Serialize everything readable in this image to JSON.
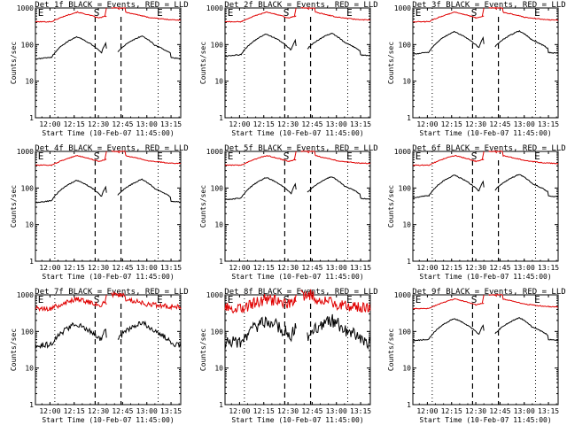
{
  "colors": {
    "events": "#000000",
    "lld": "#e00000",
    "background": "#ffffff",
    "axes": "#000000"
  },
  "chart_data": [
    {
      "type": "line",
      "title": "Det 1f BLACK = Events, RED = LLD",
      "xlabel": "Start Time (10-Feb-07 11:45:00)",
      "ylabel": "Counts/sec",
      "xlim": [
        "11:51",
        "13:21"
      ],
      "ylim": [
        1,
        1000
      ],
      "log_y": true,
      "x_ticks": [
        "12:00",
        "12:15",
        "12:30",
        "12:45",
        "13:00",
        "13:15"
      ],
      "y_ticks": [
        "1",
        "10",
        "100",
        "1000"
      ],
      "markers": [
        "E",
        "S",
        "E"
      ],
      "noise": "low"
    },
    {
      "type": "line",
      "title": "Det 2f BLACK = Events, RED = LLD",
      "xlabel": "Start Time (10-Feb-07 11:45:00)",
      "ylabel": "Counts/sec",
      "xlim": [
        "11:51",
        "13:21"
      ],
      "ylim": [
        1,
        1000
      ],
      "log_y": true,
      "x_ticks": [
        "12:00",
        "12:15",
        "12:30",
        "12:45",
        "13:00",
        "13:15"
      ],
      "y_ticks": [
        "1",
        "10",
        "100",
        "1000"
      ],
      "markers": [
        "E",
        "S",
        "E"
      ],
      "noise": "low"
    },
    {
      "type": "line",
      "title": "Det 3f BLACK = Events, RED = LLD",
      "xlabel": "Start Time (10-Feb-07 11:45:00)",
      "ylabel": "Counts/sec",
      "xlim": [
        "11:51",
        "13:21"
      ],
      "ylim": [
        1,
        1000
      ],
      "log_y": true,
      "x_ticks": [
        "12:00",
        "12:15",
        "12:30",
        "12:45",
        "13:00",
        "13:15"
      ],
      "y_ticks": [
        "1",
        "10",
        "100",
        "1000"
      ],
      "markers": [
        "E",
        "S",
        "E"
      ],
      "noise": "low"
    },
    {
      "type": "line",
      "title": "Det 4f BLACK = Events, RED = LLD",
      "xlabel": "Start Time (10-Feb-07 11:45:00)",
      "ylabel": "Counts/sec",
      "xlim": [
        "11:51",
        "13:21"
      ],
      "ylim": [
        1,
        1000
      ],
      "log_y": true,
      "x_ticks": [
        "12:00",
        "12:15",
        "12:30",
        "12:45",
        "13:00",
        "13:15"
      ],
      "y_ticks": [
        "1",
        "10",
        "100",
        "1000"
      ],
      "markers": [
        "E",
        "S",
        "E"
      ],
      "noise": "low"
    },
    {
      "type": "line",
      "title": "Det 5f BLACK = Events, RED = LLD",
      "xlabel": "Start Time (10-Feb-07 11:45:00)",
      "ylabel": "Counts/sec",
      "xlim": [
        "11:51",
        "13:21"
      ],
      "ylim": [
        1,
        1000
      ],
      "log_y": true,
      "x_ticks": [
        "12:00",
        "12:15",
        "12:30",
        "12:45",
        "13:00",
        "13:15"
      ],
      "y_ticks": [
        "1",
        "10",
        "100",
        "1000"
      ],
      "markers": [
        "E",
        "S",
        "E"
      ],
      "noise": "low"
    },
    {
      "type": "line",
      "title": "Det 6f BLACK = Events, RED = LLD",
      "xlabel": "Start Time (10-Feb-07 11:45:00)",
      "ylabel": "Counts/sec",
      "xlim": [
        "11:51",
        "13:21"
      ],
      "ylim": [
        1,
        1000
      ],
      "log_y": true,
      "x_ticks": [
        "12:00",
        "12:15",
        "12:30",
        "12:45",
        "13:00",
        "13:15"
      ],
      "y_ticks": [
        "1",
        "10",
        "100",
        "1000"
      ],
      "markers": [
        "E",
        "S",
        "E"
      ],
      "noise": "low"
    },
    {
      "type": "line",
      "title": "Det 7f BLACK = Events, RED = LLD",
      "xlabel": "Start Time (10-Feb-07 11:45:00)",
      "ylabel": "Counts/sec",
      "xlim": [
        "11:51",
        "13:21"
      ],
      "ylim": [
        1,
        1000
      ],
      "log_y": true,
      "x_ticks": [
        "12:00",
        "12:15",
        "12:30",
        "12:45",
        "13:00",
        "13:15"
      ],
      "y_ticks": [
        "1",
        "10",
        "100",
        "1000"
      ],
      "markers": [
        "E",
        "S",
        "E"
      ],
      "noise": "high"
    },
    {
      "type": "line",
      "title": "Det 8f BLACK = Events, RED = LLD",
      "xlabel": "Start Time (10-Feb-07 11:45:00)",
      "ylabel": "Counts/sec",
      "xlim": [
        "11:51",
        "13:21"
      ],
      "ylim": [
        1,
        1000
      ],
      "log_y": true,
      "x_ticks": [
        "12:00",
        "12:15",
        "12:30",
        "12:45",
        "13:00",
        "13:15"
      ],
      "y_ticks": [
        "1",
        "10",
        "100",
        "1000"
      ],
      "markers": [
        "E",
        "S",
        "E"
      ],
      "noise": "very-high"
    },
    {
      "type": "line",
      "title": "Det 9f BLACK = Events, RED = LLD",
      "xlabel": "Start Time (10-Feb-07 11:45:00)",
      "ylabel": "Counts/sec",
      "xlim": [
        "11:51",
        "13:21"
      ],
      "ylim": [
        1,
        1000
      ],
      "log_y": true,
      "x_ticks": [
        "12:00",
        "12:15",
        "12:30",
        "12:45",
        "13:00",
        "13:15"
      ],
      "y_ticks": [
        "1",
        "10",
        "100",
        "1000"
      ],
      "markers": [
        "E",
        "S",
        "E"
      ],
      "noise": "low"
    }
  ]
}
